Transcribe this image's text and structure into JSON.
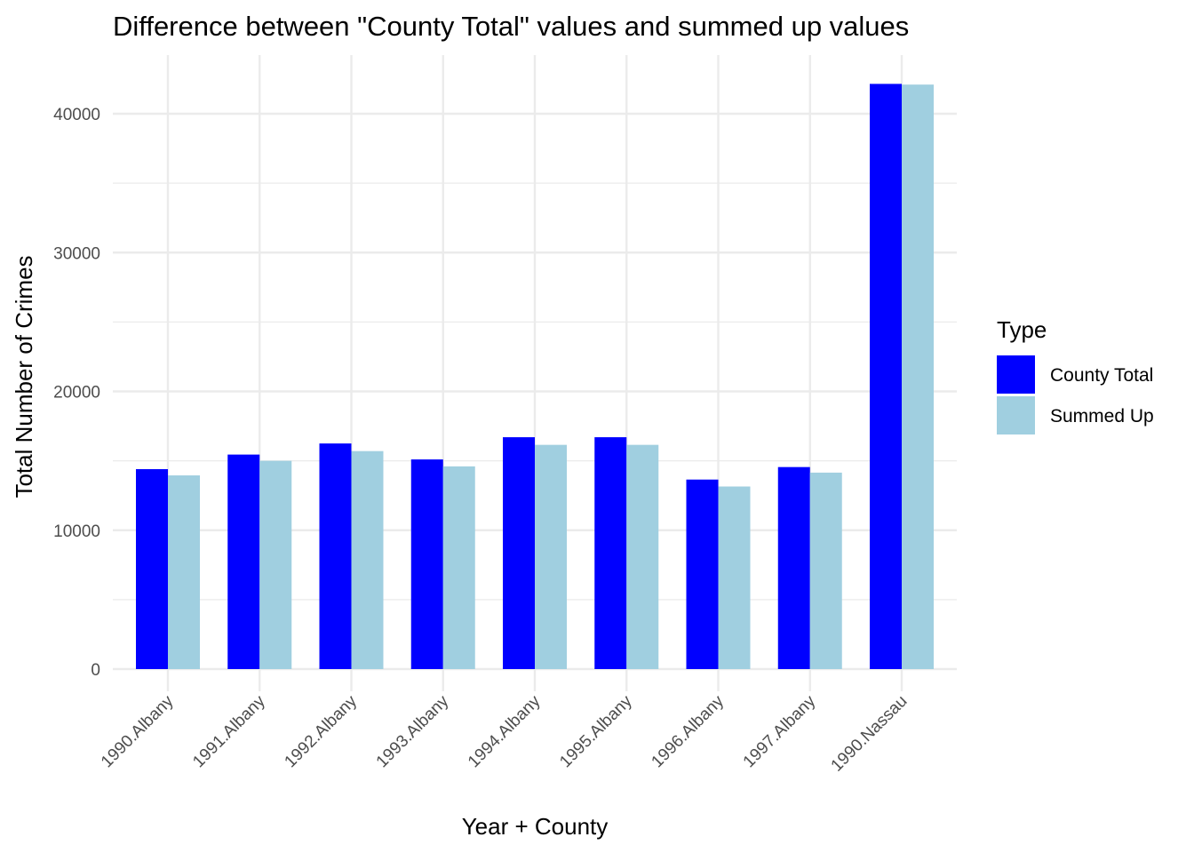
{
  "chart_data": {
    "type": "bar",
    "title": "Difference between \"County Total\" values and summed up values",
    "xlabel": "Year + County",
    "ylabel": "Total Number of Crimes",
    "categories": [
      "1990.Albany",
      "1991.Albany",
      "1992.Albany",
      "1993.Albany",
      "1994.Albany",
      "1995.Albany",
      "1996.Albany",
      "1997.Albany",
      "1990.Nassau"
    ],
    "series": [
      {
        "name": "County Total",
        "color": "#0000FF",
        "values": [
          14400,
          15450,
          16250,
          15100,
          16700,
          16700,
          13650,
          14550,
          42150
        ]
      },
      {
        "name": "Summed Up",
        "color": "#A0CFE0",
        "values": [
          13950,
          15000,
          15700,
          14600,
          16150,
          16150,
          13150,
          14150,
          42100
        ]
      }
    ],
    "ylim": [
      0,
      44000
    ],
    "yticks": [
      0,
      10000,
      20000,
      30000,
      40000
    ],
    "grid": true,
    "legend": {
      "title": "Type",
      "position": "right"
    }
  }
}
